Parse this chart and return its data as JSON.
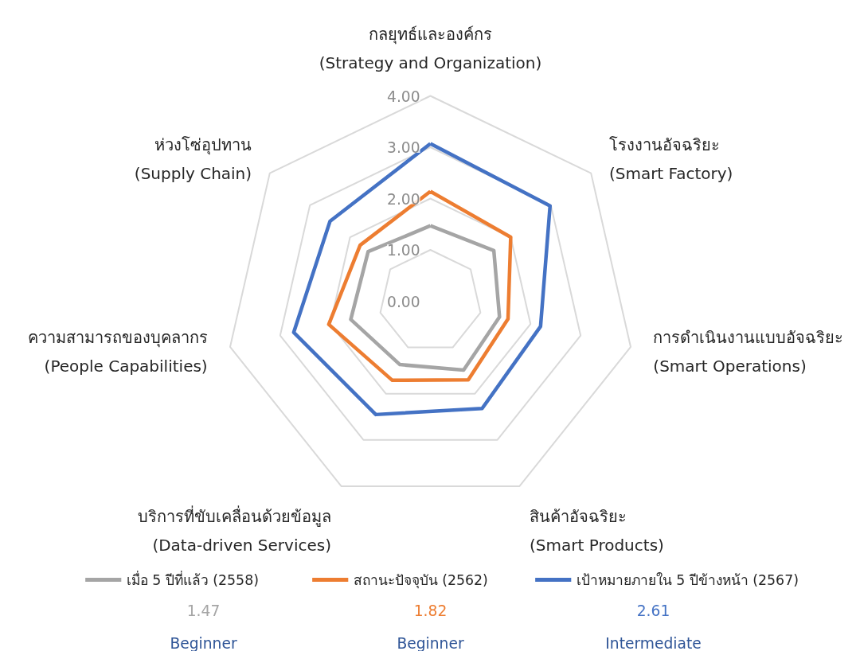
{
  "chart_data": {
    "type": "radar",
    "categories": [
      "กลยุทธ์และองค์กร (Strategy and Organization)",
      "โรงงานอัจฉริยะ (Smart Factory)",
      "การดำเนินงานแบบอัจฉริยะ (Smart Operations)",
      "สินค้าอัจฉริยะ (Smart Products)",
      "บริการที่ขับเคลื่อนด้วยข้อมูล (Data-driven Services)",
      "ความสามารถของบุคลากร (People Capabilities)",
      "ห่วงโซ่อุปทาน (Supply Chain)"
    ],
    "series": [
      {
        "name": "เมื่อ 5 ปีที่แล้ว (2558)",
        "color": "#a5a5a5",
        "values": [
          1.47,
          1.58,
          1.38,
          1.49,
          1.37,
          1.59,
          1.55
        ]
      },
      {
        "name": "สถานะปัจจุบัน (2562)",
        "color": "#ed7d31",
        "values": [
          2.14,
          2.0,
          1.55,
          1.7,
          1.71,
          2.03,
          1.75
        ]
      },
      {
        "name": "เป้าหมายภายใน 5 ปีข้างหน้า (2567)",
        "color": "#4472c4",
        "values": [
          3.07,
          2.98,
          2.2,
          2.32,
          2.45,
          2.73,
          2.5
        ]
      }
    ],
    "ylim": [
      0,
      4
    ],
    "yticks": [
      {
        "value": 0,
        "label": "0.00"
      },
      {
        "value": 1,
        "label": "1.00"
      },
      {
        "value": 2,
        "label": "2.00"
      },
      {
        "value": 3,
        "label": "3.00"
      },
      {
        "value": 4,
        "label": "4.00"
      }
    ],
    "grid": true,
    "legend": "bottom",
    "line_style": "solid",
    "marker": "none",
    "annotations": [
      "1.47",
      "1.82",
      "2.61",
      "Beginner",
      "Beginner",
      "Intermediate"
    ]
  }
}
